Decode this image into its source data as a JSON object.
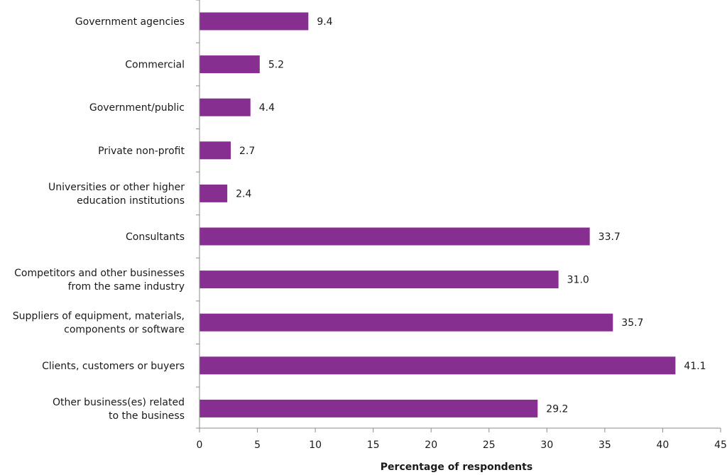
{
  "chart_data": {
    "type": "bar",
    "orientation": "horizontal",
    "title": "",
    "xlabel": "Percentage of respondents",
    "ylabel": "",
    "xlim": [
      0,
      45
    ],
    "xticks": [
      0,
      5,
      10,
      15,
      20,
      25,
      30,
      35,
      40,
      45
    ],
    "grid": false,
    "bar_color": "#862f91",
    "categories": [
      [
        "Government agencies"
      ],
      [
        "Commercial"
      ],
      [
        "Government/public"
      ],
      [
        "Private non-profit"
      ],
      [
        "Universities or other higher",
        "education institutions"
      ],
      [
        "Consultants"
      ],
      [
        "Competitors and other businesses",
        "from the same industry"
      ],
      [
        "Suppliers of equipment, materials,",
        "components or software"
      ],
      [
        "Clients, customers or buyers"
      ],
      [
        "Other business(es) related",
        "to the business"
      ]
    ],
    "values": [
      9.4,
      5.2,
      4.4,
      2.7,
      2.4,
      33.7,
      31.0,
      35.7,
      41.1,
      29.2
    ],
    "value_labels": [
      "9.4",
      "5.2",
      "4.4",
      "2.7",
      "2.4",
      "33.7",
      "31.0",
      "35.7",
      "41.1",
      "29.2"
    ]
  }
}
